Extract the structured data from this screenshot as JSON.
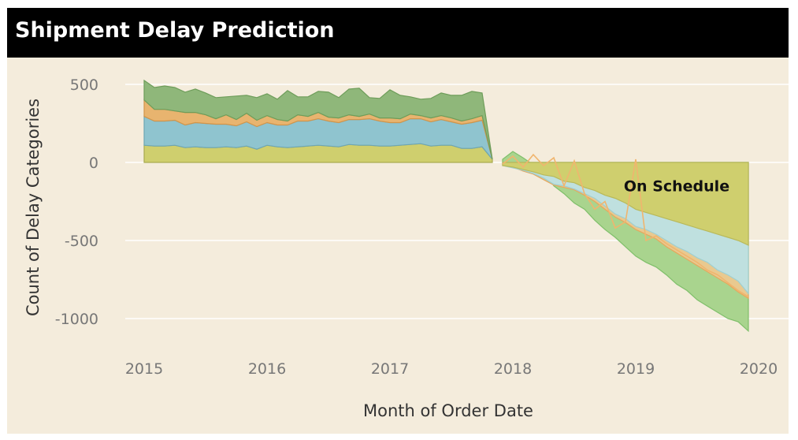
{
  "page": {
    "title": "Shipment Delay Prediction"
  },
  "colors": {
    "background": "#f4ecdc",
    "title_bar": "#000000",
    "on_schedule": "#cfcf6e",
    "blue": "#8fc4cf",
    "orange": "#e8b46f",
    "green_actual": "#8fb77a",
    "blue_forecast": "#bfe0df",
    "green_forecast": "#a9d48e"
  },
  "chart_data": {
    "type": "area",
    "title": "Shipment Delay Prediction",
    "xlabel": "Month of Order Date",
    "ylabel": "Count of Delay Categories",
    "xlim": [
      "2015-01",
      "2020-01"
    ],
    "ylim": [
      -1100,
      550
    ],
    "grid": true,
    "x_ticks": [
      "2015",
      "2016",
      "2017",
      "2018",
      "2019",
      "2020"
    ],
    "y_ticks": [
      {
        "value": 500,
        "label": "500"
      },
      {
        "value": 0,
        "label": "0"
      },
      {
        "value": -500,
        "label": "-500"
      },
      {
        "value": -1000,
        "label": "-1000"
      }
    ],
    "annotations": [
      {
        "text": "On Schedule",
        "x": "2019-05",
        "y": -150
      }
    ],
    "actual": {
      "x": [
        "2015-01",
        "2015-02",
        "2015-03",
        "2015-04",
        "2015-05",
        "2015-06",
        "2015-07",
        "2015-08",
        "2015-09",
        "2015-10",
        "2015-11",
        "2015-12",
        "2016-01",
        "2016-02",
        "2016-03",
        "2016-04",
        "2016-05",
        "2016-06",
        "2016-07",
        "2016-08",
        "2016-09",
        "2016-10",
        "2016-11",
        "2016-12",
        "2017-01",
        "2017-02",
        "2017-03",
        "2017-04",
        "2017-05",
        "2017-06",
        "2017-07",
        "2017-08",
        "2017-09",
        "2017-10",
        "2017-11"
      ],
      "series": [
        {
          "name": "On Schedule",
          "values": [
            110,
            105,
            105,
            110,
            95,
            100,
            95,
            95,
            100,
            95,
            105,
            85,
            110,
            100,
            95,
            100,
            105,
            110,
            105,
            100,
            115,
            110,
            110,
            105,
            105,
            110,
            115,
            120,
            105,
            110,
            110,
            90,
            90,
            100,
            20
          ]
        },
        {
          "values": [
            185,
            160,
            160,
            160,
            145,
            155,
            155,
            150,
            145,
            140,
            155,
            145,
            145,
            140,
            145,
            165,
            160,
            170,
            160,
            155,
            160,
            165,
            170,
            160,
            150,
            145,
            165,
            160,
            155,
            165,
            150,
            155,
            165,
            170,
            0
          ]
        },
        {
          "values": [
            105,
            75,
            75,
            60,
            80,
            65,
            55,
            35,
            60,
            40,
            55,
            40,
            45,
            35,
            25,
            40,
            30,
            40,
            25,
            30,
            30,
            20,
            30,
            20,
            30,
            25,
            30,
            20,
            25,
            25,
            25,
            20,
            25,
            30,
            0
          ]
        },
        {
          "values": [
            125,
            140,
            150,
            150,
            130,
            150,
            140,
            135,
            115,
            150,
            115,
            145,
            140,
            130,
            195,
            115,
            125,
            135,
            160,
            130,
            165,
            180,
            105,
            125,
            180,
            150,
            110,
            105,
            125,
            145,
            145,
            165,
            175,
            145,
            0
          ]
        }
      ]
    },
    "forecast": {
      "x": [
        "2017-12",
        "2018-01",
        "2018-02",
        "2018-03",
        "2018-04",
        "2018-05",
        "2018-06",
        "2018-07",
        "2018-08",
        "2018-09",
        "2018-10",
        "2018-11",
        "2018-12",
        "2019-01",
        "2019-02",
        "2019-03",
        "2019-04",
        "2019-05",
        "2019-06",
        "2019-07",
        "2019-08",
        "2019-09",
        "2019-10",
        "2019-11",
        "2019-12"
      ],
      "on_schedule": [
        -20,
        -30,
        -45,
        -60,
        -80,
        -90,
        -120,
        -130,
        -160,
        -180,
        -210,
        -230,
        -260,
        -300,
        -320,
        -340,
        -360,
        -380,
        -400,
        -420,
        -440,
        -460,
        -480,
        -500,
        -530
      ],
      "blue": [
        -20,
        -35,
        -50,
        -70,
        -100,
        -140,
        -150,
        -170,
        -200,
        -230,
        -280,
        -330,
        -360,
        -410,
        -430,
        -460,
        -500,
        -540,
        -570,
        -610,
        -640,
        -690,
        -720,
        -760,
        -840
      ],
      "orange": [
        -20,
        -30,
        -55,
        -75,
        -110,
        -145,
        -160,
        -175,
        -210,
        -250,
        -300,
        -350,
        -385,
        -430,
        -460,
        -490,
        -540,
        -580,
        -620,
        -660,
        -700,
        -740,
        -780,
        -830,
        -870
      ],
      "green": [
        20,
        70,
        30,
        -15,
        -50,
        -150,
        -200,
        -260,
        -300,
        -370,
        -430,
        -480,
        -540,
        -600,
        -640,
        -670,
        -720,
        -780,
        -820,
        -880,
        -920,
        -960,
        -1000,
        -1020,
        -1080
      ]
    }
  }
}
